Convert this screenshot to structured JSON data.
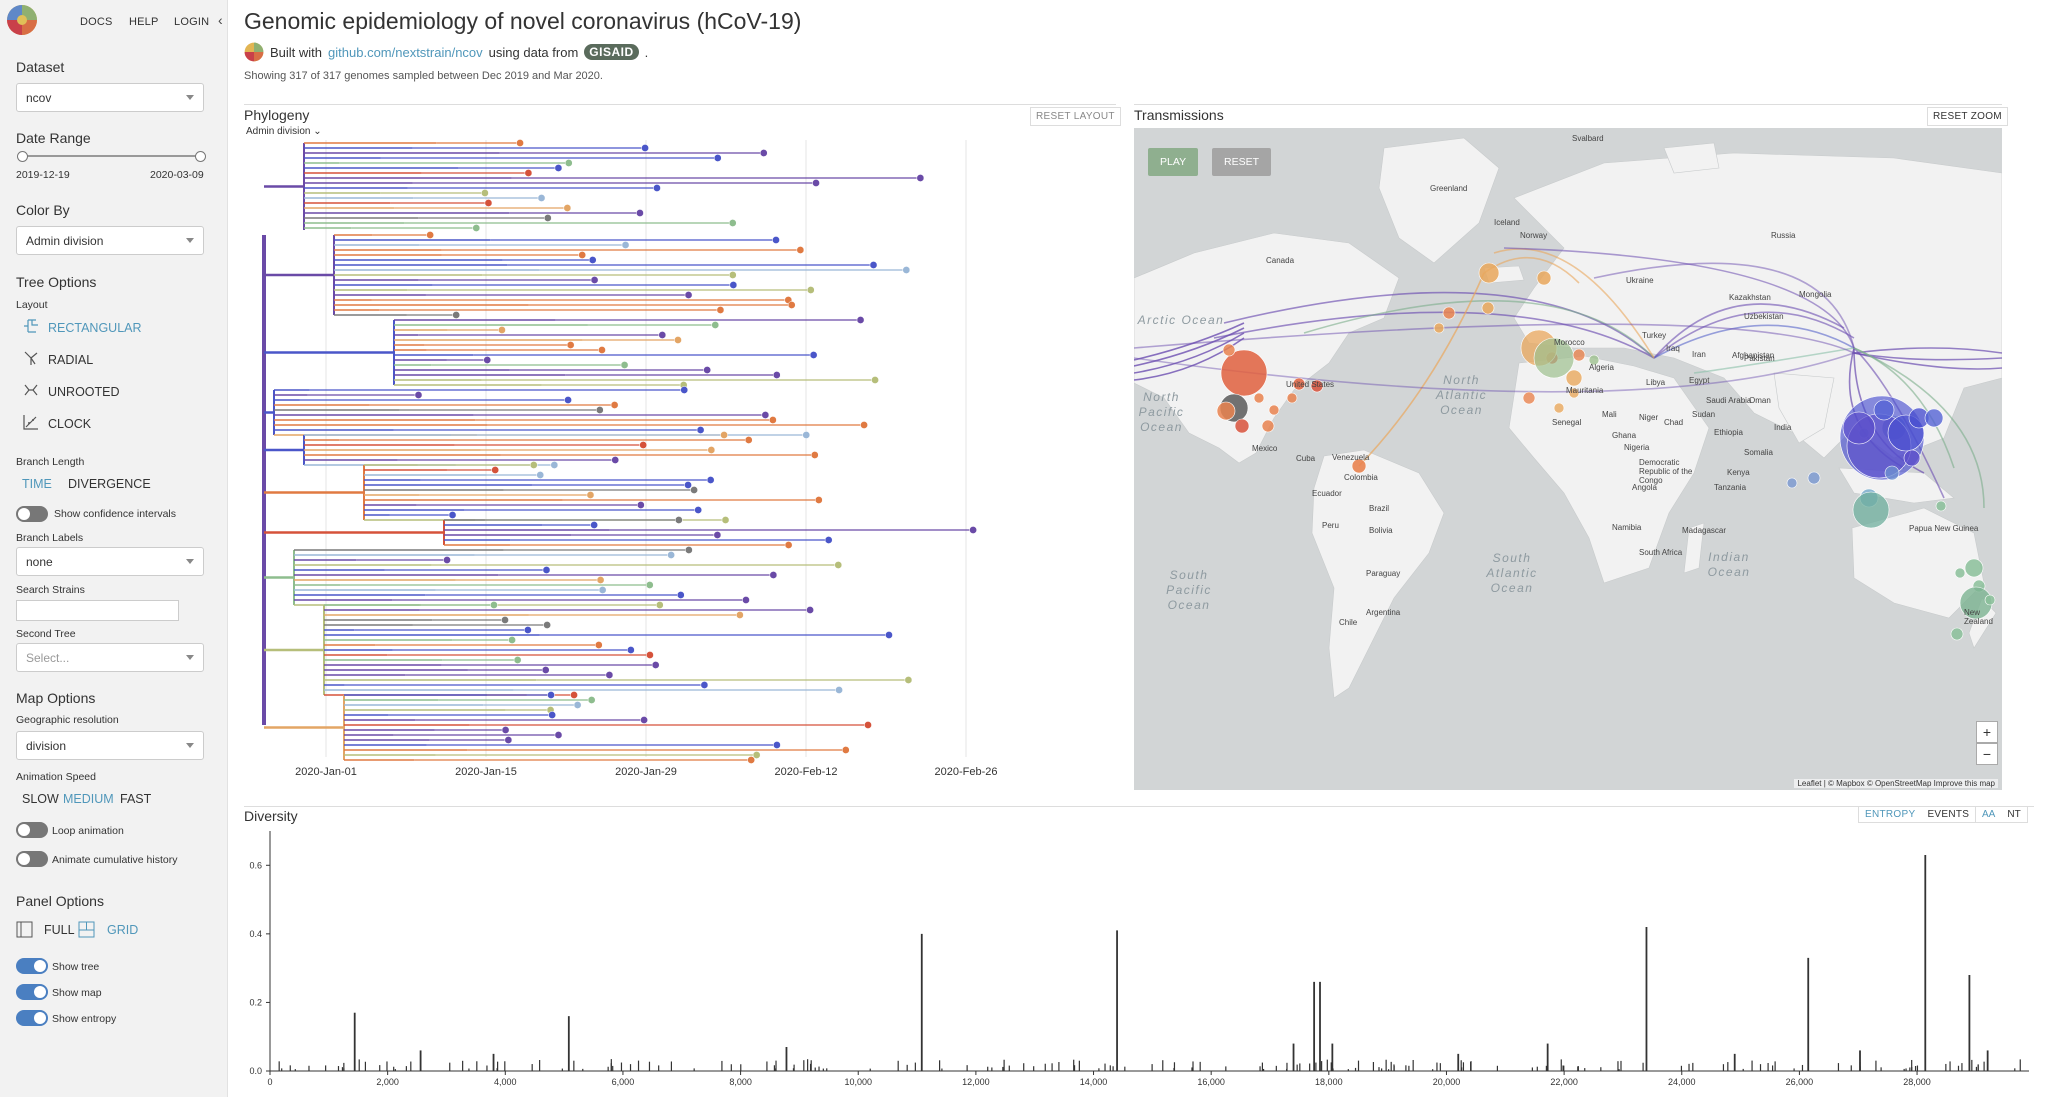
{
  "nav": {
    "docs": "DOCS",
    "help": "HELP",
    "login": "LOGIN"
  },
  "sidebar": {
    "dataset": {
      "label": "Dataset",
      "value": "ncov"
    },
    "date_range": {
      "label": "Date Range",
      "start": "2019-12-19",
      "end": "2020-03-09"
    },
    "color_by": {
      "label": "Color By",
      "value": "Admin division"
    },
    "tree_options": {
      "label": "Tree Options",
      "layout_label": "Layout",
      "layouts": [
        "RECTANGULAR",
        "RADIAL",
        "UNROOTED",
        "CLOCK"
      ],
      "branch_length_label": "Branch Length",
      "time": "TIME",
      "divergence": "DIVERGENCE",
      "confidence": "Show confidence intervals",
      "branch_labels_label": "Branch Labels",
      "branch_labels_value": "none",
      "search_label": "Search Strains",
      "search_value": "",
      "second_tree_label": "Second Tree",
      "second_tree_placeholder": "Select..."
    },
    "map_options": {
      "label": "Map Options",
      "geo_label": "Geographic resolution",
      "geo_value": "division",
      "speed_label": "Animation Speed",
      "speeds": [
        "SLOW",
        "MEDIUM",
        "FAST"
      ],
      "loop": "Loop animation",
      "cumulative": "Animate cumulative history"
    },
    "panel_options": {
      "label": "Panel Options",
      "full": "FULL",
      "grid": "GRID",
      "show_tree": "Show tree",
      "show_map": "Show map",
      "show_entropy": "Show entropy"
    }
  },
  "header": {
    "title": "Genomic epidemiology of novel coronavirus (hCoV-19)",
    "built_with": "Built with",
    "repo_link": "github.com/nextstrain/ncov",
    "using_data": "using data from",
    "gisaid": "GISAID",
    "period": ".",
    "summary": "Showing 317 of 317 genomes sampled between Dec 2019 and Mar 2020."
  },
  "phylogeny": {
    "title": "Phylogeny",
    "reset": "RESET LAYOUT",
    "color_by": "Admin division",
    "ticks": [
      "2020-Jan-01",
      "2020-Jan-15",
      "2020-Jan-29",
      "2020-Feb-12",
      "2020-Feb-26"
    ]
  },
  "map": {
    "title": "Transmissions",
    "reset_zoom": "RESET ZOOM",
    "play": "PLAY",
    "reset": "RESET",
    "zoom_in": "+",
    "zoom_out": "−",
    "attribution": "Leaflet | © Mapbox © OpenStreetMap Improve this map",
    "oceans": [
      "Arctic Ocean",
      "North Atlantic Ocean",
      "North Pacific Ocean",
      "South Atlantic Ocean",
      "South Pacific Ocean",
      "Indian Ocean"
    ],
    "labels": [
      "Greenland",
      "Svalbard",
      "Iceland",
      "Norway",
      "Russia",
      "Canada",
      "Ukraine",
      "Kazakhstan",
      "Mongolia",
      "Uzbekistan",
      "Turkey",
      "Iraq",
      "Iran",
      "Afghanistan",
      "Pakistan",
      "Libya",
      "Egypt",
      "Saudi Arabia",
      "Oman",
      "Sudan",
      "Mali",
      "Niger",
      "Chad",
      "Nigeria",
      "Ethiopia",
      "Kenya",
      "Tanzania",
      "Angola",
      "Namibia",
      "South Africa",
      "Madagascar",
      "Morocco",
      "Algeria",
      "Mexico",
      "Cuba",
      "Venezuela",
      "Colombia",
      "Ecuador",
      "Peru",
      "Brazil",
      "Bolivia",
      "Paraguay",
      "Argentina",
      "Chile",
      "Papua New Guinea",
      "New Zealand",
      "India",
      "Mauritania",
      "Senegal",
      "Ghana",
      "Democratic Republic of the Congo",
      "Somalia",
      "United States"
    ],
    "colors": {
      "land": "#f2f2f2",
      "water": "#d2d5d6",
      "play": "#8faf8f",
      "reset": "#a5a5a5"
    }
  },
  "diversity": {
    "title": "Diversity",
    "entropy": "ENTROPY",
    "events": "EVENTS",
    "aa": "AA",
    "nt": "NT",
    "yticks": [
      "0.0",
      "0.2",
      "0.4",
      "0.6"
    ],
    "xticks": [
      "0",
      "2,000",
      "4,000",
      "6,000",
      "8,000",
      "10,000",
      "12,000",
      "14,000",
      "16,000",
      "18,000",
      "20,000",
      "22,000",
      "24,000",
      "26,000",
      "28,000"
    ]
  },
  "chart_data": {
    "type": "bar",
    "title": "Diversity",
    "xlabel": "",
    "ylabel": "",
    "xlim": [
      0,
      29903
    ],
    "ylim": [
      0,
      0.7
    ],
    "peaks": [
      {
        "x": 1440,
        "y": 0.17
      },
      {
        "x": 2560,
        "y": 0.06
      },
      {
        "x": 5080,
        "y": 0.16
      },
      {
        "x": 8780,
        "y": 0.07
      },
      {
        "x": 11080,
        "y": 0.4
      },
      {
        "x": 14400,
        "y": 0.41
      },
      {
        "x": 17750,
        "y": 0.26
      },
      {
        "x": 17850,
        "y": 0.26
      },
      {
        "x": 18060,
        "y": 0.08
      },
      {
        "x": 21720,
        "y": 0.08
      },
      {
        "x": 23400,
        "y": 0.42
      },
      {
        "x": 26150,
        "y": 0.33
      },
      {
        "x": 28140,
        "y": 0.63
      },
      {
        "x": 27030,
        "y": 0.06
      },
      {
        "x": 28890,
        "y": 0.28
      },
      {
        "x": 29200,
        "y": 0.06
      },
      {
        "x": 17400,
        "y": 0.08
      },
      {
        "x": 20200,
        "y": 0.05
      },
      {
        "x": 24900,
        "y": 0.05
      },
      {
        "x": 3800,
        "y": 0.05
      }
    ]
  },
  "colors": {
    "accent": "#5097BA",
    "purple": "#6a4aa7",
    "blue": "#4a56c9",
    "orange": "#e07a42",
    "red": "#d5523a",
    "green": "#8ebd8e",
    "olive": "#b6be7a",
    "tan": "#e3a565"
  }
}
